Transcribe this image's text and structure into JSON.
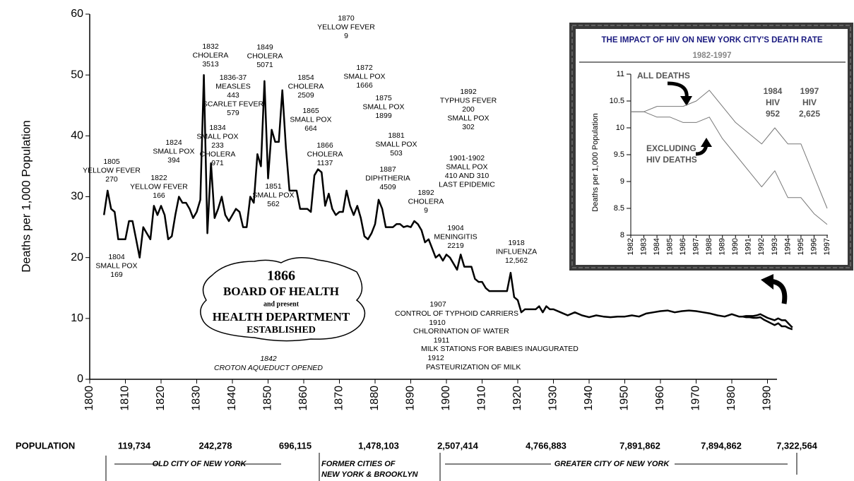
{
  "chart_data": [
    {
      "type": "line",
      "y_label": "Deaths per 1,000 Population",
      "xlim": [
        1800,
        2000
      ],
      "xticks": [
        1800,
        1810,
        1820,
        1830,
        1840,
        1850,
        1860,
        1870,
        1880,
        1890,
        1900,
        1910,
        1920,
        1930,
        1940,
        1950,
        1960,
        1970,
        1980,
        1990
      ],
      "ylim": [
        0,
        60
      ],
      "yticks": [
        0,
        10,
        20,
        30,
        40,
        50,
        60
      ],
      "series": [
        {
          "color": "#000000",
          "x": [
            1804,
            1805,
            1806,
            1807,
            1808,
            1809,
            1810,
            1811,
            1812,
            1813,
            1814,
            1815,
            1816,
            1817,
            1818,
            1819,
            1820,
            1821,
            1822,
            1823,
            1824,
            1825,
            1826,
            1827,
            1828,
            1829,
            1830,
            1831,
            1832,
            1833,
            1834,
            1835,
            1836,
            1837,
            1838,
            1839,
            1840,
            1841,
            1842,
            1843,
            1844,
            1845,
            1846,
            1847,
            1848,
            1849,
            1850,
            1851,
            1852,
            1853,
            1854,
            1855,
            1856,
            1857,
            1858,
            1859,
            1860,
            1861,
            1862,
            1863,
            1864,
            1865,
            1866,
            1867,
            1868,
            1869,
            1870,
            1871,
            1872,
            1873,
            1874,
            1875,
            1876,
            1877,
            1878,
            1879,
            1880,
            1881,
            1882,
            1883,
            1884,
            1885,
            1886,
            1887,
            1888,
            1889,
            1890,
            1891,
            1892,
            1893,
            1894,
            1895,
            1896,
            1897,
            1898,
            1899,
            1900,
            1901,
            1902,
            1903,
            1904,
            1905,
            1906,
            1907,
            1908,
            1909,
            1910,
            1911,
            1912,
            1913,
            1914,
            1915,
            1916,
            1917,
            1918,
            1919,
            1920,
            1921,
            1922,
            1923,
            1924,
            1925,
            1926,
            1927,
            1928,
            1929,
            1930,
            1932,
            1934,
            1936,
            1938,
            1940,
            1942,
            1944,
            1946,
            1948,
            1950,
            1952,
            1954,
            1956,
            1958,
            1960,
            1962,
            1964,
            1966,
            1968,
            1970,
            1972,
            1974,
            1976,
            1978,
            1980,
            1982,
            1983,
            1984,
            1985,
            1986,
            1987,
            1988,
            1989,
            1990,
            1991,
            1992,
            1993,
            1994,
            1995,
            1996,
            1997
          ],
          "values": [
            27,
            31,
            28,
            27.5,
            23,
            23,
            23,
            26,
            26,
            23,
            20,
            25,
            24,
            23,
            28.5,
            27,
            28.5,
            27,
            23,
            23.5,
            27,
            30,
            29,
            29,
            28,
            26.5,
            27.5,
            29.5,
            50,
            24,
            35.5,
            26.5,
            28,
            30,
            27,
            26,
            27,
            28,
            27.5,
            25,
            25,
            30,
            29,
            37,
            35,
            49,
            33,
            41,
            39,
            39,
            47.5,
            38,
            31,
            31,
            31,
            28,
            28,
            28,
            27.5,
            33.5,
            34.5,
            34,
            28.5,
            30.5,
            28,
            27,
            27.5,
            27.5,
            31,
            28.5,
            27,
            28.5,
            26.5,
            23.5,
            23,
            24,
            25.5,
            29.5,
            28,
            25,
            25,
            25,
            25.5,
            25.5,
            25,
            25.2,
            25,
            26,
            25.5,
            24.5,
            22.5,
            23,
            21.5,
            20,
            20.5,
            19.5,
            20.5,
            20,
            19,
            18,
            20.5,
            18.5,
            18.5,
            18.5,
            16.5,
            16,
            16,
            15,
            14.5,
            14.5,
            14.5,
            14.5,
            14.5,
            14.5,
            17.5,
            13.5,
            13,
            11,
            11.5,
            11.5,
            11.5,
            11.5,
            12,
            11,
            12,
            11.5,
            11.5,
            11,
            10.5,
            11,
            10.5,
            10.2,
            10.5,
            10.3,
            10.2,
            10.3,
            10.3,
            10.5,
            10.3,
            10.8,
            11,
            11.2,
            11.3,
            11,
            11.2,
            11.3,
            11.2,
            11,
            10.8,
            10.5,
            10.3,
            10.7,
            10.3,
            10.3,
            10.4,
            10.4,
            10.4,
            10.5,
            10.7,
            10.4,
            10.1,
            9.9,
            9.7,
            10,
            9.7,
            9.7,
            9.1,
            8.5
          ]
        },
        {
          "color": "#000000",
          "x": [
            1982,
            1983,
            1984,
            1985,
            1986,
            1987,
            1988,
            1989,
            1990,
            1991,
            1992,
            1993,
            1994,
            1995,
            1996,
            1997
          ],
          "values": [
            10.3,
            10.3,
            10.2,
            10.2,
            10.1,
            10.1,
            10.2,
            9.8,
            9.5,
            9.2,
            8.9,
            9.2,
            8.7,
            8.7,
            8.4,
            8.2
          ]
        }
      ],
      "annotations": [
        [
          "1805",
          "YELLOW FEVER",
          "270"
        ],
        [
          "1804",
          "SMALL POX",
          "169"
        ],
        [
          "1822",
          "YELLOW FEVER",
          "166"
        ],
        [
          "1824",
          "SMALL POX",
          "394"
        ],
        [
          "1832",
          "CHOLERA",
          "3513"
        ],
        [
          "1836-37",
          "MEASLES",
          "443",
          "SCARLET FEVER",
          "579"
        ],
        [
          "1834",
          "SMALL POX",
          "233",
          "CHOLERA",
          "971"
        ],
        [
          "1849",
          "CHOLERA",
          "5071"
        ],
        [
          "1854",
          "CHOLERA",
          "2509"
        ],
        [
          "1865",
          "SMALL POX",
          "664"
        ],
        [
          "1866",
          "CHOLERA",
          "1137"
        ],
        [
          "1851",
          "SMALL POX",
          "562"
        ],
        [
          "1870",
          "YELLOW FEVER",
          "9"
        ],
        [
          "1872",
          "SMALL POX",
          "1666"
        ],
        [
          "1875",
          "SMALL POX",
          "1899"
        ],
        [
          "1881",
          "SMALL POX",
          "503"
        ],
        [
          "1887",
          "DIPHTHERIA",
          "4509"
        ],
        [
          "1892",
          "CHOLERA",
          "9"
        ],
        [
          "1892",
          "TYPHUS FEVER",
          "200",
          "SMALL POX",
          "302"
        ],
        [
          "1901-1902",
          "SMALL POX",
          "410 AND 310",
          "LAST EPIDEMIC"
        ],
        [
          "1904",
          "MENINGITIS",
          "2219"
        ],
        [
          "1918",
          "INFLUENZA",
          "12,562"
        ],
        [
          "1907",
          "CONTROL OF TYPHOID CARRIERS",
          "1910",
          "CHLORINATION OF WATER",
          "1911",
          "MILK STATIONS FOR BABIES INAUGURATED",
          "1912",
          "PASTEURIZATION OF MILK"
        ],
        [
          "1842",
          "CROTON AQUEDUCT OPENED"
        ]
      ],
      "callout": [
        "1866",
        "BOARD OF HEALTH",
        "and present",
        "HEALTH DEPARTMENT",
        "ESTABLISHED"
      ]
    },
    {
      "type": "line",
      "title": "THE IMPACT OF HIV ON NEW YORK CITY'S DEATH RATE",
      "subtitle": "1982-1997",
      "y_label": "Deaths per 1,000 Population",
      "categories": [
        "1982",
        "1983",
        "1984",
        "1985",
        "1986",
        "1987",
        "1988",
        "1989",
        "1990",
        "1991",
        "1992",
        "1993",
        "1994",
        "1995",
        "1996",
        "1997"
      ],
      "ylim": [
        8,
        11
      ],
      "yticks": [
        8,
        8.5,
        9,
        9.5,
        10,
        10.5,
        11
      ],
      "series": [
        {
          "name": "ALL DEATHS",
          "color": "#777777",
          "values": [
            10.3,
            10.3,
            10.4,
            10.4,
            10.4,
            10.5,
            10.7,
            10.4,
            10.1,
            9.9,
            9.7,
            10,
            9.7,
            9.7,
            9.1,
            8.5
          ]
        },
        {
          "name": "EXCLUDING HIV DEATHS",
          "color": "#777777",
          "values": [
            10.3,
            10.3,
            10.2,
            10.2,
            10.1,
            10.1,
            10.2,
            9.8,
            9.5,
            9.2,
            8.9,
            9.2,
            8.7,
            8.7,
            8.4,
            8.2
          ]
        }
      ],
      "annotations": [
        [
          "1984",
          "HIV",
          "952"
        ],
        [
          "1997",
          "HIV",
          "2,625"
        ]
      ]
    }
  ],
  "population": {
    "label": "POPULATION",
    "values": [
      "119,734",
      "242,278",
      "696,115",
      "1,478,103",
      "2,507,414",
      "4,766,883",
      "7,891,862",
      "7,894,862",
      "7,322,564"
    ],
    "periods": [
      [
        "OLD CITY OF NEW YORK"
      ],
      [
        "FORMER CITIES OF",
        "NEW YORK & BROOKLYN"
      ],
      [
        "GREATER CITY OF NEW YORK"
      ]
    ]
  }
}
